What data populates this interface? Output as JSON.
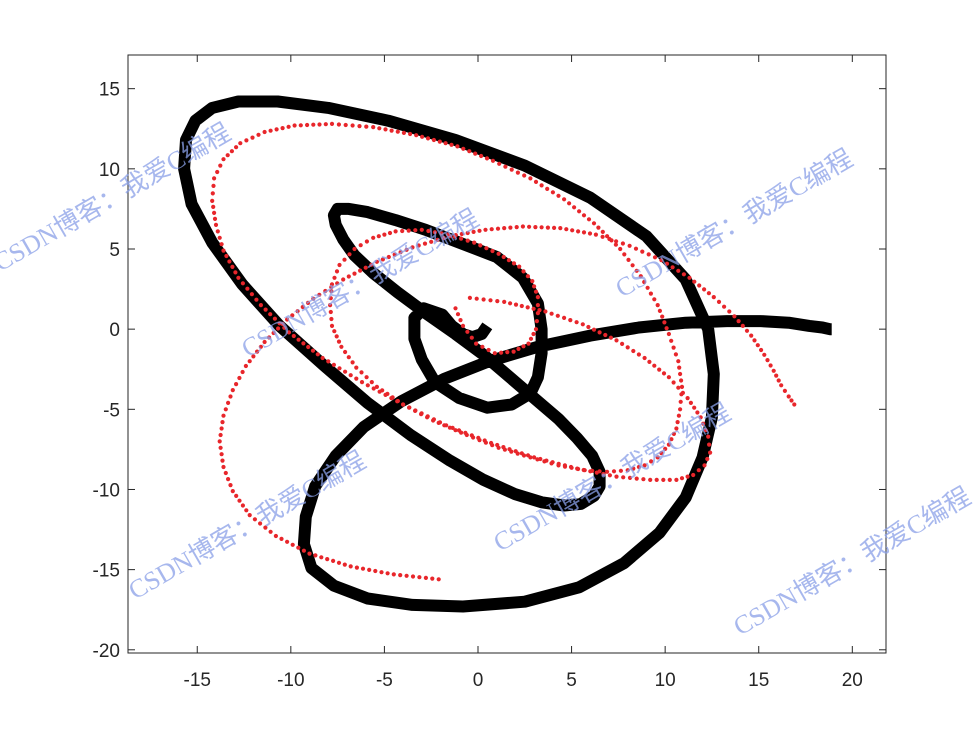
{
  "chart_data": {
    "type": "line",
    "title": "",
    "xlabel": "",
    "ylabel": "",
    "xlim": [
      -18.7,
      21.8
    ],
    "ylim": [
      -20.2,
      17.1
    ],
    "xticks": [
      -15,
      -10,
      -5,
      0,
      5,
      10,
      15,
      20
    ],
    "yticks": [
      15,
      10,
      5,
      0,
      -5,
      -10,
      -15,
      -20
    ],
    "xtick_labels": [
      "-15",
      "-10",
      "-5",
      "0",
      "5",
      "10",
      "15",
      "20"
    ],
    "ytick_labels": [
      "15",
      "10",
      "5",
      "0",
      "-5",
      "-10",
      "-15",
      "-20"
    ],
    "grid": false,
    "box": true,
    "series": [
      {
        "style": "solid-thick",
        "color": "#000000",
        "x": [
          0.5,
          0.2,
          -0.3,
          -0.8,
          -1.4,
          -1.9,
          -2.9,
          -3.4,
          -3.4,
          -3.0,
          -2.3,
          -1.0,
          0.5,
          1.8,
          2.8,
          3.2,
          3.4,
          3.4,
          3.2,
          2.4,
          1.0,
          -1.0,
          -2.8,
          -4.4,
          -5.9,
          -6.9,
          -7.5,
          -7.7,
          -7.6,
          -7.2,
          -6.6,
          -5.6,
          -4.3,
          -2.8,
          -1.2,
          0.3,
          1.7,
          3.1,
          4.3,
          5.3,
          6.1,
          6.5,
          6.5,
          6.2,
          5.5,
          4.6,
          3.4,
          2.0,
          0.3,
          -1.5,
          -3.6,
          -5.9,
          -8.2,
          -10.6,
          -12.6,
          -14.2,
          -15.3,
          -15.7,
          -15.6,
          -15.1,
          -14.2,
          -12.8,
          -10.7,
          -8.0,
          -4.8,
          -1.2,
          2.5,
          6.0,
          9.0,
          11.1,
          12.3,
          12.6,
          12.5,
          12.0,
          11.1,
          9.7,
          7.8,
          5.4,
          2.5,
          -0.8,
          -3.5,
          -5.9,
          -7.7,
          -8.9,
          -9.3,
          -9.2,
          -8.7,
          -7.6,
          -6.1,
          -4.1,
          -1.8,
          0.6,
          3.2,
          6.0,
          8.6,
          11.1,
          13.3,
          15.1,
          16.6,
          17.7,
          18.4,
          18.8,
          18.9
        ],
        "y": [
          0.2,
          -0.3,
          -0.5,
          -0.3,
          0.2,
          0.9,
          1.3,
          0.7,
          -0.6,
          -1.9,
          -3.3,
          -4.3,
          -4.9,
          -4.7,
          -4.0,
          -3.0,
          -1.5,
          0.0,
          1.6,
          3.2,
          4.5,
          5.4,
          6.2,
          6.8,
          7.3,
          7.5,
          7.5,
          7.1,
          6.5,
          5.6,
          4.6,
          3.5,
          2.3,
          1.0,
          -0.3,
          -1.6,
          -3.0,
          -4.4,
          -5.6,
          -6.8,
          -7.9,
          -8.9,
          -9.8,
          -10.4,
          -10.9,
          -11.0,
          -10.8,
          -10.3,
          -9.4,
          -8.2,
          -6.6,
          -4.6,
          -2.3,
          0.2,
          2.8,
          5.4,
          7.8,
          10.0,
          11.8,
          13.0,
          13.8,
          14.2,
          14.2,
          13.8,
          13.0,
          11.8,
          10.2,
          8.2,
          5.8,
          3.1,
          0.0,
          -2.8,
          -5.5,
          -8.0,
          -10.5,
          -12.7,
          -14.6,
          -16.1,
          -17.0,
          -17.3,
          -17.2,
          -16.8,
          -16.0,
          -14.9,
          -13.4,
          -11.7,
          -9.8,
          -7.9,
          -6.1,
          -4.5,
          -3.1,
          -2.0,
          -1.1,
          -0.4,
          0.1,
          0.4,
          0.5,
          0.5,
          0.4,
          0.2,
          0.1,
          0.0,
          0.0
        ]
      },
      {
        "style": "dotted",
        "color": "#e8262b",
        "x": [
          -1.2,
          -0.8,
          -0.1,
          0.9,
          1.9,
          2.7,
          3.1,
          3.2,
          3.2,
          2.9,
          2.2,
          1.1,
          -0.2,
          -1.6,
          -3.0,
          -4.4,
          -5.6,
          -6.6,
          -7.4,
          -7.8,
          -7.9,
          -7.8,
          -7.3,
          -6.5,
          -5.4,
          -4.0,
          -2.4,
          -0.6,
          1.1,
          2.8,
          4.3,
          5.7,
          6.9,
          8.0,
          8.9,
          9.6,
          10.2,
          10.6,
          10.8,
          10.9,
          10.7,
          10.2,
          9.6,
          8.7,
          7.6,
          6.2,
          4.6,
          2.8,
          0.8,
          -1.1,
          -3.3,
          -5.6,
          -7.8,
          -9.8,
          -11.4,
          -12.7,
          -13.6,
          -14.1,
          -14.2,
          -14.0,
          -13.6,
          -12.8,
          -11.6,
          -10.1,
          -8.3,
          -6.2,
          -4.0,
          -1.7,
          0.7,
          3.0,
          5.3,
          7.4,
          9.2,
          10.6,
          11.5,
          12.1,
          12.4,
          12.3,
          11.9,
          11.2,
          10.2,
          8.9,
          7.4,
          5.6,
          3.6,
          1.4,
          -0.8,
          -2.1,
          -4.5,
          -6.8,
          -9.0,
          -10.8,
          -12.2,
          -13.1,
          -13.6,
          -13.8,
          -13.6,
          -13.1,
          -12.4,
          -11.4,
          -10.2,
          -8.8,
          -7.2,
          -5.4,
          -3.5,
          -1.5,
          0.4,
          2.4,
          4.4,
          6.3,
          8.1,
          9.8,
          11.3,
          12.6,
          13.7,
          14.6,
          15.3,
          15.8,
          16.2,
          16.6,
          16.9,
          17.1
        ],
        "y": [
          1.3,
          0.2,
          -0.9,
          -1.5,
          -1.4,
          -0.9,
          0.0,
          1.0,
          2.0,
          3.0,
          3.9,
          4.7,
          5.4,
          5.9,
          6.2,
          6.1,
          5.7,
          5.0,
          4.0,
          2.8,
          1.5,
          0.2,
          -1.1,
          -2.4,
          -3.6,
          -4.7,
          -5.7,
          -6.6,
          -7.4,
          -8.0,
          -8.5,
          -8.8,
          -8.9,
          -8.8,
          -8.5,
          -8.0,
          -7.2,
          -6.2,
          -5.0,
          -3.6,
          -2.0,
          -0.3,
          1.5,
          3.3,
          5.0,
          6.6,
          8.1,
          9.4,
          10.5,
          11.4,
          12.1,
          12.6,
          12.8,
          12.7,
          12.3,
          11.6,
          10.6,
          9.4,
          8.0,
          6.5,
          4.9,
          3.2,
          1.5,
          -0.2,
          -1.8,
          -3.3,
          -4.7,
          -6.0,
          -7.1,
          -8.0,
          -8.7,
          -9.2,
          -9.4,
          -9.4,
          -9.1,
          -8.5,
          -7.7,
          -6.7,
          -5.5,
          -4.3,
          -3.0,
          -1.8,
          -0.7,
          0.3,
          1.1,
          1.7,
          2.0,
          -15.6,
          -15.3,
          -14.8,
          -14.0,
          -12.9,
          -11.6,
          -10.1,
          -8.6,
          -7.0,
          -5.4,
          -3.8,
          -2.3,
          -0.8,
          0.6,
          1.9,
          3.1,
          4.2,
          5.1,
          5.8,
          6.2,
          6.4,
          6.3,
          5.9,
          5.2,
          4.3,
          3.2,
          2.0,
          0.8,
          -0.4,
          -1.6,
          -2.6,
          -3.5,
          -4.2,
          -4.7,
          -5.0
        ]
      }
    ]
  },
  "watermark": {
    "text": "CSDN博客：我爱C编程"
  }
}
